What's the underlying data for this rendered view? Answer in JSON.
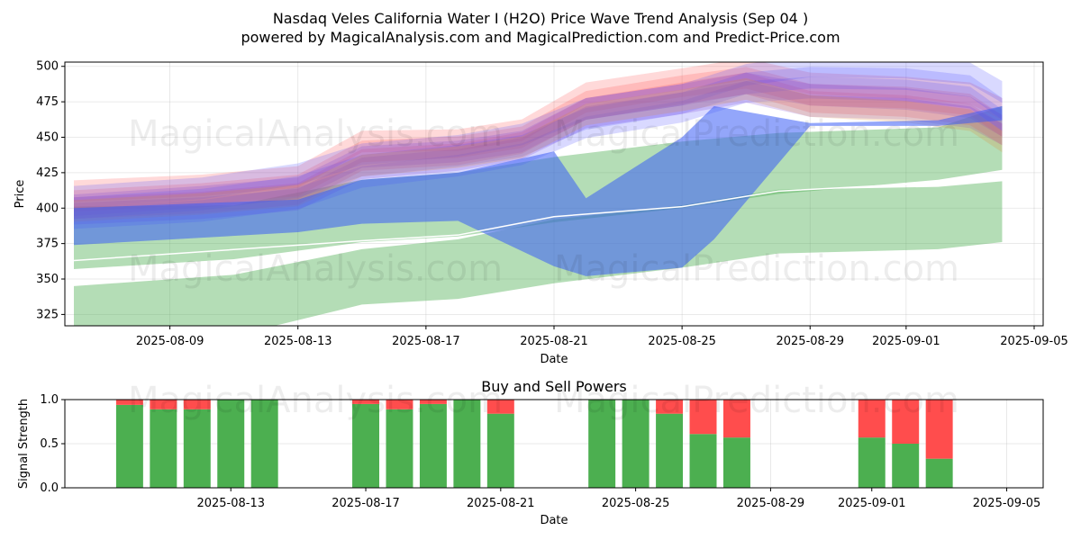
{
  "title_line1": "Nasdaq Veles California Water I (H2O) Price Wave Trend Analysis (Sep 04 )",
  "title_line2": "powered by MagicalAnalysis.com and MagicalPrediction.com and Predict-Price.com",
  "watermarks": [
    "MagicalAnalysis.com",
    "MagicalPrediction.com"
  ],
  "colors": {
    "green_band": "#4caf50",
    "blue_band": "#3a5cf5",
    "red_wave": "#ff5050",
    "blue_wave": "#5050ff",
    "purple_wave": "#7a40d8",
    "orange_wave": "#e08a30",
    "buy": "#4caf50",
    "sell": "#ff4d4d",
    "white_line": "#ffffff"
  },
  "chart_data": [
    {
      "type": "area",
      "title": "Nasdaq Veles California Water I (H2O) Price Wave Trend Analysis (Sep 04 )",
      "xlabel": "Date",
      "ylabel": "Price",
      "ylim": [
        317,
        503
      ],
      "xlim": [
        "2025-08-06",
        "2025-09-05"
      ],
      "x_tick_labels": [
        "2025-08-09",
        "2025-08-13",
        "2025-08-17",
        "2025-08-21",
        "2025-08-25",
        "2025-08-29",
        "2025-09-01",
        "2025-09-05"
      ],
      "y_ticks": [
        325,
        350,
        375,
        400,
        425,
        450,
        475,
        500
      ],
      "grid": true,
      "green_upper_band": {
        "x": [
          "2025-08-06",
          "2025-08-11",
          "2025-08-15",
          "2025-08-18",
          "2025-08-21",
          "2025-08-25",
          "2025-08-28",
          "2025-09-02",
          "2025-09-04"
        ],
        "upper": [
          401,
          402,
          420,
          425,
          436,
          447,
          453,
          457,
          472
        ],
        "lower": [
          357,
          364,
          376,
          380,
          390,
          400,
          410,
          420,
          427
        ]
      },
      "green_lower_band": {
        "x": [
          "2025-08-06",
          "2025-08-11",
          "2025-08-15",
          "2025-08-18",
          "2025-08-21",
          "2025-08-25",
          "2025-08-28",
          "2025-09-02",
          "2025-09-04"
        ],
        "upper": [
          345,
          353,
          371,
          378,
          392,
          402,
          413,
          415,
          419
        ],
        "lower": [
          315,
          310,
          332,
          336,
          347,
          358,
          368,
          371,
          376
        ]
      },
      "white_line": {
        "x": [
          "2025-08-06",
          "2025-08-15",
          "2025-08-18",
          "2025-08-21",
          "2025-08-25",
          "2025-08-28",
          "2025-09-02",
          "2025-09-04"
        ],
        "values": [
          363,
          377,
          381,
          394,
          401,
          412,
          418,
          422
        ]
      },
      "blue_trend_band": {
        "x": [
          "2025-08-06",
          "2025-08-13",
          "2025-08-15",
          "2025-08-18",
          "2025-08-21",
          "2025-08-22",
          "2025-08-25",
          "2025-08-26",
          "2025-08-29",
          "2025-09-02",
          "2025-09-04"
        ],
        "upper": [
          400,
          406,
          420,
          425,
          440,
          407,
          450,
          472,
          460,
          462,
          472
        ],
        "lower": [
          374,
          383,
          389,
          391,
          359,
          352,
          358,
          378,
          458,
          458,
          462
        ]
      },
      "price_waves": {
        "x": [
          "2025-08-06",
          "2025-08-10",
          "2025-08-13",
          "2025-08-15",
          "2025-08-18",
          "2025-08-20",
          "2025-08-22",
          "2025-08-25",
          "2025-08-27",
          "2025-08-29",
          "2025-09-01",
          "2025-09-03",
          "2025-09-04"
        ],
        "series": [
          {
            "name": "red-wave-1",
            "color": "red",
            "values": [
              412,
              416,
              422,
              447,
              448,
              455,
              481,
              491,
              498,
              488,
              485,
              481,
              470
            ]
          },
          {
            "name": "red-wave-2",
            "color": "red",
            "values": [
              405,
              410,
              416,
              440,
              443,
              450,
              475,
              486,
              492,
              480,
              478,
              473,
              458
            ]
          },
          {
            "name": "red-wave-3",
            "color": "red",
            "values": [
              400,
              404,
              410,
              434,
              438,
              446,
              470,
              481,
              488,
              475,
              472,
              466,
              452
            ]
          },
          {
            "name": "blue-wave-1",
            "color": "blue",
            "values": [
              408,
              414,
              424,
              438,
              444,
              452,
              470,
              480,
              494,
              500,
              499,
              495,
              482
            ]
          },
          {
            "name": "blue-wave-2",
            "color": "blue",
            "values": [
              400,
              406,
              415,
              430,
              437,
              444,
              463,
              474,
              488,
              492,
              491,
              486,
              470
            ]
          },
          {
            "name": "blue-wave-3",
            "color": "blue",
            "values": [
              393,
              398,
              407,
              422,
              430,
              438,
              457,
              468,
              482,
              485,
              483,
              478,
              462
            ]
          },
          {
            "name": "purple-wave-1",
            "color": "purple",
            "values": [
              402,
              408,
              414,
              436,
              440,
              447,
              470,
              480,
              488,
              480,
              477,
              471,
              458
            ]
          },
          {
            "name": "purple-wave-2",
            "color": "purple",
            "values": [
              396,
              400,
              406,
              428,
              434,
              442,
              464,
              474,
              482,
              472,
              470,
              464,
              452
            ]
          },
          {
            "name": "orange-wave-1",
            "color": "orange",
            "values": [
              398,
              403,
              409,
              430,
              436,
              443,
              466,
              476,
              484,
              472,
              468,
              462,
              447
            ]
          }
        ]
      }
    },
    {
      "type": "bar",
      "title": "Buy and Sell Powers",
      "xlabel": "Date",
      "ylabel": "Signal Strength",
      "ylim": [
        0,
        1
      ],
      "y_tick_labels": [
        "0.0",
        "0.5",
        "1.0"
      ],
      "x_tick_labels": [
        "2025-08-13",
        "2025-08-17",
        "2025-08-21",
        "2025-08-25",
        "2025-08-29",
        "2025-09-01",
        "2025-09-05"
      ],
      "grid": true,
      "bars": [
        {
          "date": "2025-08-10",
          "buy": 0.94
        },
        {
          "date": "2025-08-11",
          "buy": 0.89
        },
        {
          "date": "2025-08-12",
          "buy": 0.89
        },
        {
          "date": "2025-08-13",
          "buy": 1.0
        },
        {
          "date": "2025-08-14",
          "buy": 1.0
        },
        {
          "date": "2025-08-17",
          "buy": 0.95
        },
        {
          "date": "2025-08-18",
          "buy": 0.89
        },
        {
          "date": "2025-08-19",
          "buy": 0.95
        },
        {
          "date": "2025-08-20",
          "buy": 1.0
        },
        {
          "date": "2025-08-21",
          "buy": 0.84
        },
        {
          "date": "2025-08-24",
          "buy": 1.0
        },
        {
          "date": "2025-08-25",
          "buy": 1.0
        },
        {
          "date": "2025-08-26",
          "buy": 0.84
        },
        {
          "date": "2025-08-27",
          "buy": 0.61
        },
        {
          "date": "2025-08-28",
          "buy": 0.57
        },
        {
          "date": "2025-09-01",
          "buy": 0.57
        },
        {
          "date": "2025-09-02",
          "buy": 0.5
        },
        {
          "date": "2025-09-03",
          "buy": 0.33
        }
      ]
    }
  ]
}
